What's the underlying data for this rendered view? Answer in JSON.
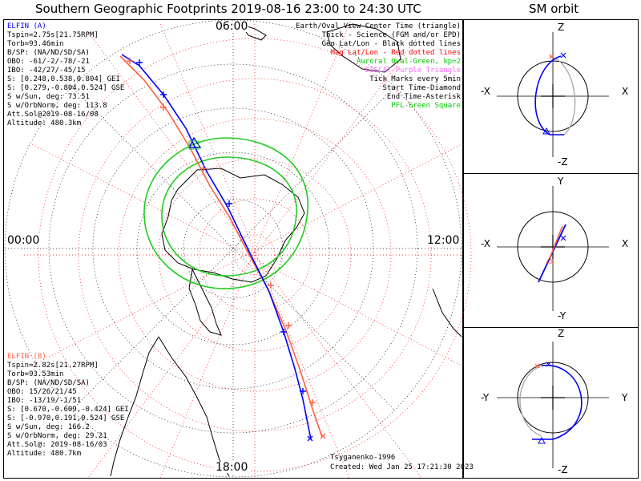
{
  "title": "Southern Geographic Footprints 2019-08-16 23:00 to 24:30 UTC",
  "orbit_title": "SM orbit",
  "clock_labels": {
    "top": "06:00",
    "left": "00:00",
    "right": "12:00",
    "bottom": "18:00"
  },
  "elfin_a": {
    "name": "ELFIN (A)",
    "color": "#0000ff",
    "lines": [
      "Tspin=2.75s[21.75RPM]",
      "Torb=93.46min",
      "B/SP: (NA/ND/SD/SA)",
      "OBO: -61/-2/-78/-21",
      "IBO: -42/27/-45/15",
      "S: [0.248,0.538,0.804] GEI",
      "S: [0.279,-0.804,0.524] GSE",
      "S w/Sun, deg: 73.51",
      "S w/OrbNorm, deg: 113.8",
      "Att.Sol@2019-08-16/08",
      "Altitude: 480.3km"
    ]
  },
  "elfin_b": {
    "name": "ELFIN (B)",
    "color": "#ff6040",
    "lines": [
      "Tspin=2.82s[21.27RPM]",
      "Torb=93.53min",
      "B/SP: (NA/ND/SD/SA)",
      "OBO: 15/26/21/45",
      "IBO: -13/19/-1/51",
      "S: [0.670,-0.609,-0.424] GEI",
      "S: [-0.970,0.191,0.524] GSE",
      "S w/Sun, deg: 166.2",
      "S w/OrbNorm, deg: 29.21",
      "Att.Sol@: 2019-08-16/03",
      "Altitude: 480.7km"
    ]
  },
  "legend": [
    {
      "text": "Earth/Oval View Center Time (triangle)",
      "color": "#000000"
    },
    {
      "text": "Thick - Science (FGM and/or EPD)",
      "color": "#000000"
    },
    {
      "text": "Geo Lat/Lon - Black dotted lines",
      "color": "#000000"
    },
    {
      "text": "Mag Lat/Lon - Red dotted lines",
      "color": "#ff0000"
    },
    {
      "text": "Auroral Oval-Green, kp=2",
      "color": "#00cc00"
    },
    {
      "text": "EISCAT-Purple Triangle",
      "color": "#ff66ff"
    },
    {
      "text": "Tick Marks every 5min",
      "color": "#000000"
    },
    {
      "text": "Start Time-Diamond",
      "color": "#000000"
    },
    {
      "text": "End Time-Asterisk",
      "color": "#000000"
    },
    {
      "text": "PFL-Green Square",
      "color": "#00cc00"
    }
  ],
  "credits": {
    "model": "Tsyganenko-1996",
    "created": "Created: Wed Jan 25 17:21:30 2023"
  },
  "orbit_panels": [
    {
      "top": "Z",
      "bottom": "-Z",
      "left": "-X",
      "right": "X"
    },
    {
      "top": "Y",
      "bottom": "-Y",
      "left": "-X",
      "right": "X"
    },
    {
      "top": "Z",
      "bottom": "-Z",
      "left": "-Y",
      "right": "Y"
    }
  ],
  "colors": {
    "elfin_a": "#0000ff",
    "elfin_b": "#ff6040",
    "auroral_oval": "#22cc22",
    "geo_grid": "#000000",
    "mag_grid": "#ff0000"
  }
}
